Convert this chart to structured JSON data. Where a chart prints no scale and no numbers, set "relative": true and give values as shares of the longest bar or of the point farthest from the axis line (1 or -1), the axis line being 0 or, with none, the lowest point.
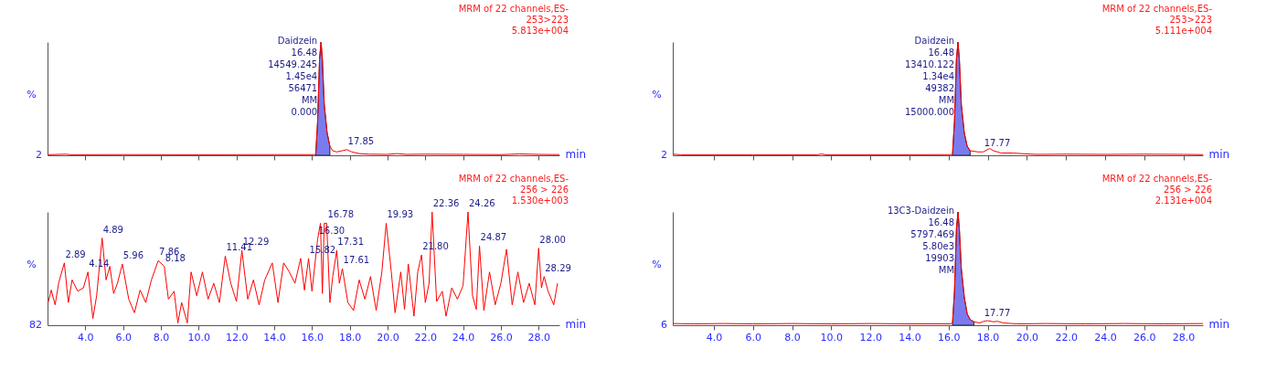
{
  "chart_data": [
    {
      "type": "line",
      "relative": true,
      "xlabel": "min",
      "ylabel": "%",
      "tick_labels": false,
      "xlim": [
        2.0,
        29.1
      ],
      "xticks": [
        {
          "value": 4,
          "label": null
        },
        {
          "value": 6,
          "label": null
        },
        {
          "value": 8,
          "label": null
        },
        {
          "value": 10,
          "label": null
        },
        {
          "value": 12,
          "label": null
        },
        {
          "value": 14,
          "label": null
        },
        {
          "value": 16,
          "label": null
        },
        {
          "value": 18,
          "label": null
        },
        {
          "value": 20,
          "label": null
        },
        {
          "value": 22,
          "label": null
        },
        {
          "value": 24,
          "label": null
        },
        {
          "value": 26,
          "label": null
        },
        {
          "value": 28,
          "label": null
        }
      ],
      "annotations": [
        "MRM of 22 channels,ES-",
        "253>223",
        "5.813e+004",
        "2",
        {
          "text": "Daidzein\n16.48\n14549.245\n1.45e4\n56471\nMM\n0.000",
          "x": 16.48,
          "y": 1
        },
        {
          "text": "17.85",
          "x": 17.85,
          "y": 0.05
        }
      ],
      "series": [
        {
          "type": "line",
          "color": "#ff0000",
          "x": [
            2.0,
            3.0,
            3.2,
            6.0,
            10.0,
            14.0,
            16.1,
            16.2,
            16.3,
            16.4,
            16.48,
            16.55,
            16.65,
            16.8,
            16.95,
            17.1,
            17.3,
            17.6,
            17.85,
            18.1,
            18.5,
            19.0,
            20.0,
            20.5,
            21.0,
            22.0,
            24.0,
            26.0,
            27.0,
            28.0,
            29.1
          ],
          "values": [
            0.005,
            0.01,
            0.005,
            0.006,
            0.005,
            0.006,
            0.006,
            0.01,
            0.3,
            0.85,
            1,
            0.85,
            0.45,
            0.2,
            0.08,
            0.04,
            0.03,
            0.04,
            0.05,
            0.03,
            0.015,
            0.01,
            0.008,
            0.015,
            0.008,
            0.01,
            0.008,
            0.006,
            0.012,
            0.008,
            0.006
          ]
        },
        {
          "type": "area",
          "color": "#7b7bef",
          "x": [
            16.2,
            16.3,
            16.4,
            16.48,
            16.55,
            16.65,
            16.8,
            16.95
          ],
          "values": [
            0.01,
            0.3,
            0.85,
            1,
            0.85,
            0.45,
            0.2,
            0.08
          ]
        }
      ]
    },
    {
      "type": "line",
      "relative": true,
      "xlabel": "min",
      "ylabel": "%",
      "tick_labels": false,
      "xlim": [
        1.9,
        29.0
      ],
      "xticks": [
        {
          "value": 4,
          "label": null
        },
        {
          "value": 6,
          "label": null
        },
        {
          "value": 8,
          "label": null
        },
        {
          "value": 10,
          "label": null
        },
        {
          "value": 12,
          "label": null
        },
        {
          "value": 14,
          "label": null
        },
        {
          "value": 16,
          "label": null
        },
        {
          "value": 18,
          "label": null
        },
        {
          "value": 20,
          "label": null
        },
        {
          "value": 22,
          "label": null
        },
        {
          "value": 24,
          "label": null
        },
        {
          "value": 26,
          "label": null
        },
        {
          "value": 28,
          "label": null
        }
      ],
      "annotations": [
        "MRM of 22 channels,ES-",
        "253>223",
        "5.111e+004",
        "2",
        {
          "text": "Daidzein\n16.48\n13410.122\n1.34e4\n49382\nMM\n15000.000",
          "x": 16.48,
          "y": 1
        },
        {
          "text": "17.77",
          "x": 17.77,
          "y": 0.03
        }
      ],
      "series": [
        {
          "type": "line",
          "color": "#ff0000",
          "x": [
            1.9,
            2.1,
            2.3,
            6.0,
            9.3,
            9.5,
            9.7,
            14.0,
            16.1,
            16.2,
            16.3,
            16.4,
            16.48,
            16.55,
            16.65,
            16.8,
            16.95,
            17.1,
            17.5,
            17.77,
            18.1,
            18.3,
            18.7,
            19.3,
            19.7,
            20.5,
            22.0,
            24.0,
            26.0,
            28.0,
            29.0
          ],
          "values": [
            0.01,
            0.008,
            0.005,
            0.005,
            0.005,
            0.012,
            0.005,
            0.005,
            0.006,
            0.01,
            0.3,
            0.85,
            1,
            0.85,
            0.45,
            0.2,
            0.08,
            0.04,
            0.03,
            0.03,
            0.06,
            0.04,
            0.02,
            0.02,
            0.015,
            0.008,
            0.01,
            0.008,
            0.01,
            0.008,
            0.006
          ]
        },
        {
          "type": "area",
          "color": "#7b7bef",
          "x": [
            16.2,
            16.3,
            16.4,
            16.48,
            16.55,
            16.65,
            16.8,
            16.95,
            17.1
          ],
          "values": [
            0.01,
            0.3,
            0.85,
            1,
            0.85,
            0.45,
            0.2,
            0.08,
            0.04
          ]
        }
      ]
    },
    {
      "type": "line",
      "relative": true,
      "xlabel": "min",
      "ylabel": "%",
      "tick_labels": "x",
      "xlim": [
        2.0,
        29.1
      ],
      "xticks": [
        {
          "value": 4,
          "label": "4.0"
        },
        {
          "value": 6,
          "label": "6.0"
        },
        {
          "value": 8,
          "label": "8.0"
        },
        {
          "value": 10,
          "label": "10.0"
        },
        {
          "value": 12,
          "label": "12.0"
        },
        {
          "value": 14,
          "label": "14.0"
        },
        {
          "value": 16,
          "label": "16.0"
        },
        {
          "value": 18,
          "label": "18.0"
        },
        {
          "value": 20,
          "label": "20.0"
        },
        {
          "value": 22,
          "label": "22.0"
        },
        {
          "value": 24,
          "label": "24.0"
        },
        {
          "value": 26,
          "label": "26.0"
        },
        {
          "value": 28,
          "label": "28.0"
        }
      ],
      "annotations": [
        "MRM of 22 channels,ES-",
        "256 > 226",
        "1.530e+003",
        "82",
        {
          "text": "2.89",
          "x": 2.89,
          "y": 0.55
        },
        {
          "text": "4.14",
          "x": 4.14,
          "y": 0.47
        },
        {
          "text": "4.89",
          "x": 4.89,
          "y": 0.77
        },
        {
          "text": "5.96",
          "x": 5.96,
          "y": 0.54
        },
        {
          "text": "7.86",
          "x": 7.86,
          "y": 0.57
        },
        {
          "text": "8.18",
          "x": 8.18,
          "y": 0.52
        },
        {
          "text": "11.41",
          "x": 11.41,
          "y": 0.61
        },
        {
          "text": "12.29",
          "x": 12.29,
          "y": 0.66
        },
        {
          "text": "15.82",
          "x": 15.82,
          "y": 0.59
        },
        {
          "text": "16.30",
          "x": 16.3,
          "y": 0.76
        },
        {
          "text": "16.78",
          "x": 16.78,
          "y": 0.9
        },
        {
          "text": "17.31",
          "x": 17.31,
          "y": 0.66
        },
        {
          "text": "17.61",
          "x": 17.61,
          "y": 0.5
        },
        {
          "text": "19.93",
          "x": 19.93,
          "y": 0.9
        },
        {
          "text": "21.80",
          "x": 21.8,
          "y": 0.62
        },
        {
          "text": "22.36",
          "x": 22.36,
          "y": 1
        },
        {
          "text": "24.26",
          "x": 24.26,
          "y": 1
        },
        {
          "text": "24.87",
          "x": 24.87,
          "y": 0.7
        },
        {
          "text": "28.00",
          "x": 28.0,
          "y": 0.68
        },
        {
          "text": "28.29",
          "x": 28.29,
          "y": 0.43
        }
      ],
      "series": [
        {
          "type": "line",
          "color": "#ff0000",
          "x": [
            2.03,
            2.2,
            2.4,
            2.6,
            2.89,
            3.1,
            3.3,
            3.6,
            3.9,
            4.14,
            4.4,
            4.6,
            4.89,
            5.1,
            5.3,
            5.5,
            5.7,
            5.96,
            6.3,
            6.6,
            6.9,
            7.2,
            7.5,
            7.86,
            8.18,
            8.4,
            8.7,
            8.9,
            9.1,
            9.4,
            9.6,
            9.9,
            10.2,
            10.5,
            10.8,
            11.1,
            11.41,
            11.7,
            12.0,
            12.29,
            12.6,
            12.9,
            13.2,
            13.5,
            13.9,
            14.2,
            14.5,
            14.8,
            15.1,
            15.4,
            15.6,
            15.82,
            16.0,
            16.3,
            16.45,
            16.55,
            16.65,
            16.78,
            16.95,
            17.1,
            17.31,
            17.45,
            17.61,
            17.9,
            18.2,
            18.5,
            18.8,
            19.1,
            19.4,
            19.7,
            19.93,
            20.2,
            20.4,
            20.7,
            20.9,
            21.1,
            21.4,
            21.6,
            21.8,
            22.0,
            22.2,
            22.36,
            22.6,
            22.9,
            23.1,
            23.4,
            23.7,
            24.0,
            24.26,
            24.5,
            24.7,
            24.87,
            25.1,
            25.4,
            25.7,
            26.0,
            26.3,
            26.6,
            26.9,
            27.2,
            27.5,
            27.8,
            28.0,
            28.15,
            28.29,
            28.5,
            28.8,
            29.0
          ],
          "values": [
            0.2,
            0.31,
            0.18,
            0.38,
            0.55,
            0.2,
            0.4,
            0.3,
            0.33,
            0.47,
            0.06,
            0.26,
            0.77,
            0.4,
            0.52,
            0.28,
            0.37,
            0.54,
            0.23,
            0.11,
            0.31,
            0.2,
            0.4,
            0.57,
            0.52,
            0.23,
            0.3,
            0.02,
            0.2,
            0.02,
            0.47,
            0.26,
            0.47,
            0.23,
            0.37,
            0.2,
            0.61,
            0.37,
            0.21,
            0.66,
            0.23,
            0.4,
            0.18,
            0.4,
            0.55,
            0.2,
            0.55,
            0.47,
            0.37,
            0.59,
            0.31,
            0.59,
            0.3,
            0.76,
            0.9,
            0.28,
            0.9,
            0.9,
            0.2,
            0.43,
            0.66,
            0.37,
            0.5,
            0.2,
            0.13,
            0.4,
            0.23,
            0.43,
            0.13,
            0.47,
            0.9,
            0.47,
            0.11,
            0.47,
            0.14,
            0.54,
            0.08,
            0.47,
            0.62,
            0.2,
            0.37,
            1,
            0.21,
            0.3,
            0.08,
            0.33,
            0.23,
            0.35,
            1,
            0.26,
            0.14,
            0.7,
            0.13,
            0.47,
            0.18,
            0.37,
            0.67,
            0.18,
            0.47,
            0.2,
            0.37,
            0.18,
            0.68,
            0.33,
            0.43,
            0.3,
            0.18,
            0.37
          ]
        }
      ]
    },
    {
      "type": "line",
      "relative": true,
      "xlabel": "min",
      "ylabel": "%",
      "tick_labels": "x",
      "xlim": [
        1.9,
        29.0
      ],
      "xticks": [
        {
          "value": 4,
          "label": "4.0"
        },
        {
          "value": 6,
          "label": "6.0"
        },
        {
          "value": 8,
          "label": "8.0"
        },
        {
          "value": 10,
          "label": "10.0"
        },
        {
          "value": 12,
          "label": "12.0"
        },
        {
          "value": 14,
          "label": "14.0"
        },
        {
          "value": 16,
          "label": "16.0"
        },
        {
          "value": 18,
          "label": "18.0"
        },
        {
          "value": 20,
          "label": "20.0"
        },
        {
          "value": 22,
          "label": "22.0"
        },
        {
          "value": 24,
          "label": "24.0"
        },
        {
          "value": 26,
          "label": "26.0"
        },
        {
          "value": 28,
          "label": "28.0"
        }
      ],
      "annotations": [
        "MRM of 22 channels,ES-",
        "256 > 226",
        "2.131e+004",
        "6",
        {
          "text": "13C3-Daidzein\n16.48\n5797.469\n5.80e3\n19903\nMM",
          "x": 16.48,
          "y": 1
        },
        {
          "text": "17.77",
          "x": 17.77,
          "y": 0.03
        }
      ],
      "series": [
        {
          "type": "line",
          "color": "#ff0000",
          "x": [
            1.9,
            3.0,
            4.5,
            6.0,
            8.0,
            10.0,
            12.0,
            14.0,
            16.1,
            16.2,
            16.3,
            16.4,
            16.48,
            16.55,
            16.65,
            16.8,
            16.95,
            17.1,
            17.3,
            17.6,
            17.8,
            18.0,
            18.3,
            18.5,
            18.8,
            19.5,
            21.0,
            23.0,
            25.0,
            27.0,
            29.0
          ],
          "values": [
            0.015,
            0.012,
            0.015,
            0.012,
            0.015,
            0.012,
            0.015,
            0.012,
            0.012,
            0.02,
            0.3,
            0.85,
            1,
            0.85,
            0.5,
            0.25,
            0.1,
            0.05,
            0.03,
            0.02,
            0.035,
            0.04,
            0.03,
            0.035,
            0.02,
            0.012,
            0.015,
            0.012,
            0.015,
            0.012,
            0.015
          ]
        },
        {
          "type": "area",
          "color": "#7b7bef",
          "x": [
            16.2,
            16.3,
            16.4,
            16.48,
            16.55,
            16.65,
            16.8,
            16.95,
            17.1,
            17.3
          ],
          "values": [
            0.02,
            0.3,
            0.85,
            1,
            0.85,
            0.5,
            0.25,
            0.1,
            0.05,
            0.03
          ]
        }
      ]
    }
  ]
}
